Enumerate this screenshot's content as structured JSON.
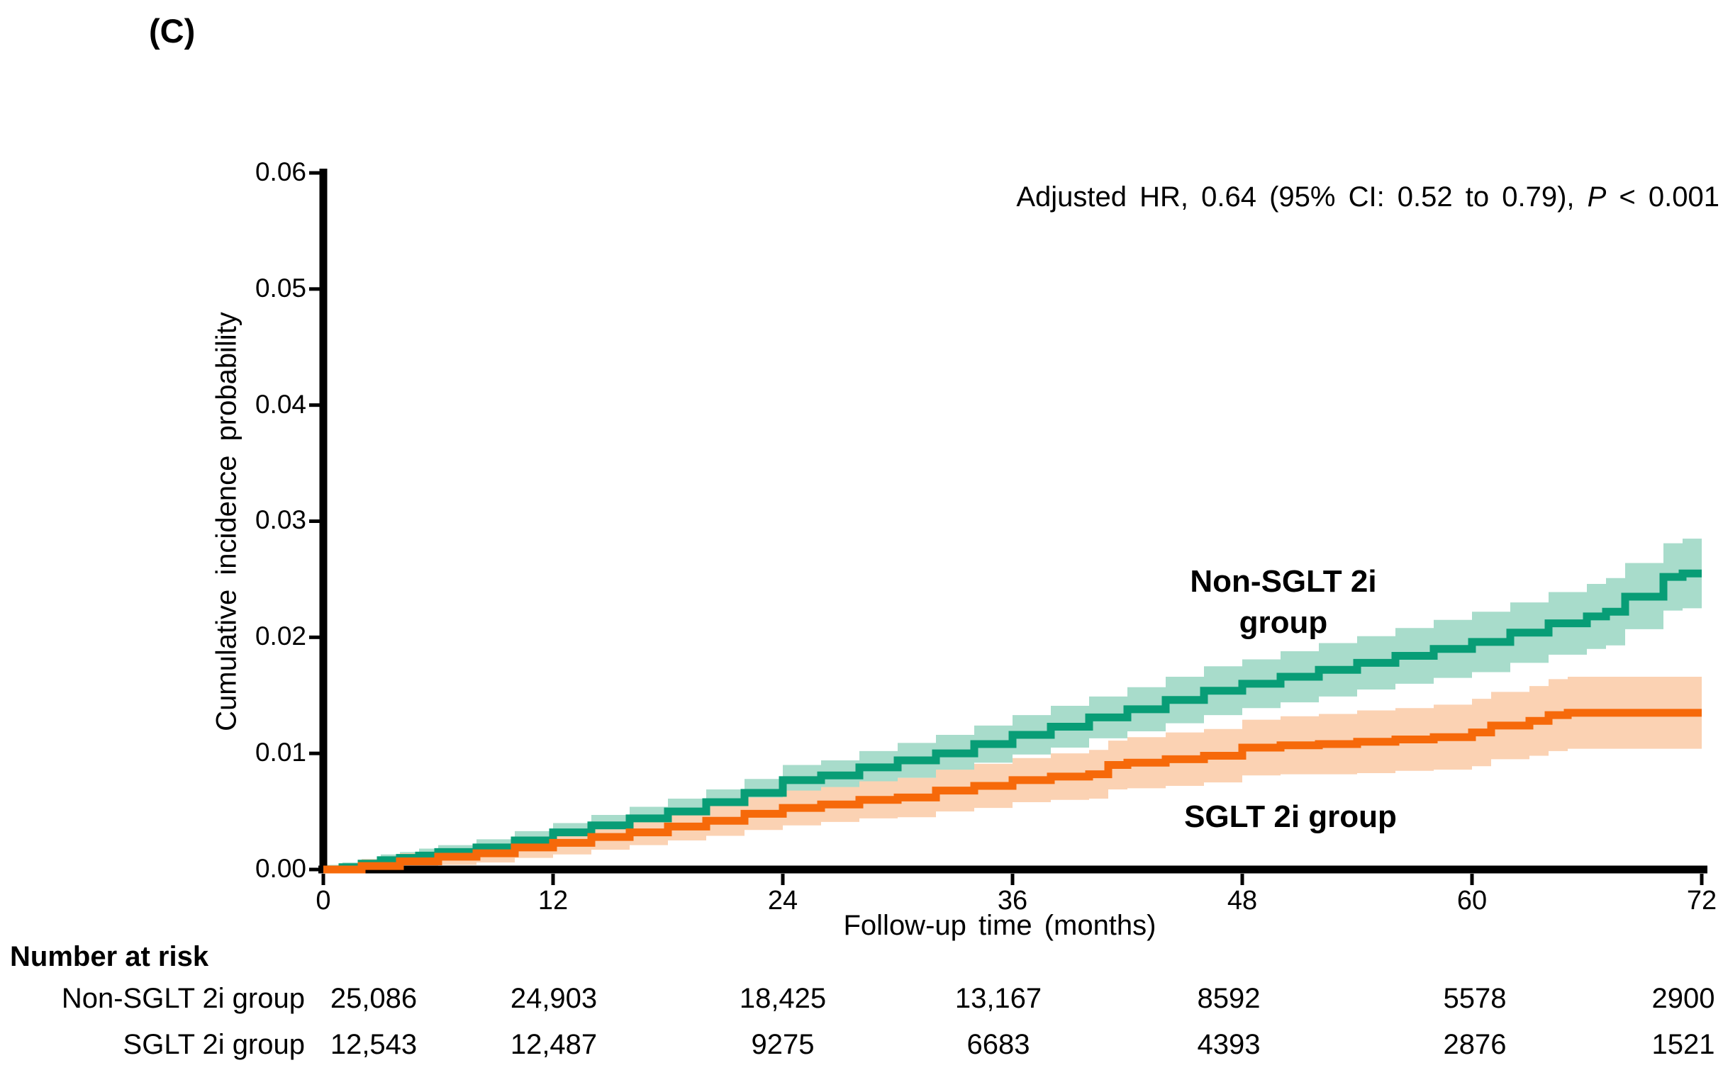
{
  "panel_label": "(C)",
  "chart_data": {
    "type": "line",
    "subtype": "cumulative-incidence-step-curves-with-95ci-bands",
    "annotation": {
      "prefix": "Adjusted HR,  0.64 (95% CI: 0.52 to 0.79), ",
      "italic": "P",
      "suffix": " < 0.001"
    },
    "xlabel": "Follow-up time (months)",
    "ylabel": "Cumulative incidence probability",
    "xlim": [
      0,
      72
    ],
    "ylim": [
      0,
      0.06
    ],
    "grid": false,
    "legend_position": "labels-on-plot",
    "xticks": [
      "0",
      "12",
      "24",
      "36",
      "48",
      "60",
      "72"
    ],
    "xtick_values": [
      0,
      12,
      24,
      36,
      48,
      60,
      72
    ],
    "yticks": [
      "0.06",
      "0.05",
      "0.04",
      "0.03",
      "0.02",
      "0.01",
      "0.00"
    ],
    "ytick_values": [
      0.06,
      0.05,
      0.04,
      0.03,
      0.02,
      0.01,
      0.0
    ],
    "axis_color": "#000000",
    "series": [
      {
        "name": "Non-SGLT 2i group",
        "label_line1": "Non-SGLT 2i",
        "label_line2": "group",
        "color": "#089d76",
        "band_color": "#a8dccb",
        "points": [
          [
            0,
            0
          ],
          [
            1,
            0.0002
          ],
          [
            2,
            0.0005
          ],
          [
            3,
            0.0008
          ],
          [
            4,
            0.001
          ],
          [
            5,
            0.0012
          ],
          [
            6,
            0.0015
          ],
          [
            8,
            0.0019
          ],
          [
            10,
            0.0025
          ],
          [
            12,
            0.0032
          ],
          [
            14,
            0.0038
          ],
          [
            16,
            0.0044
          ],
          [
            18,
            0.005
          ],
          [
            20,
            0.0058
          ],
          [
            22,
            0.0066
          ],
          [
            24,
            0.0077
          ],
          [
            26,
            0.0081
          ],
          [
            28,
            0.0088
          ],
          [
            30,
            0.0094
          ],
          [
            32,
            0.01
          ],
          [
            34,
            0.0108
          ],
          [
            36,
            0.0116
          ],
          [
            38,
            0.0123
          ],
          [
            40,
            0.0131
          ],
          [
            42,
            0.0138
          ],
          [
            44,
            0.0146
          ],
          [
            46,
            0.0154
          ],
          [
            48,
            0.016
          ],
          [
            50,
            0.0166
          ],
          [
            52,
            0.0172
          ],
          [
            54,
            0.0178
          ],
          [
            56,
            0.0184
          ],
          [
            58,
            0.019
          ],
          [
            60,
            0.0196
          ],
          [
            62,
            0.0204
          ],
          [
            64,
            0.0212
          ],
          [
            66,
            0.0218
          ],
          [
            67,
            0.0222
          ],
          [
            68,
            0.0235
          ],
          [
            70,
            0.0252
          ],
          [
            71,
            0.0255
          ],
          [
            72,
            0.0255
          ]
        ],
        "ci": [
          [
            0,
            0,
            0.0004
          ],
          [
            1,
            0,
            0.0006
          ],
          [
            2,
            0.0001,
            0.0009
          ],
          [
            3,
            0.0003,
            0.0013
          ],
          [
            4,
            0.0005,
            0.0015
          ],
          [
            5,
            0.0006,
            0.0018
          ],
          [
            6,
            0.0009,
            0.0021
          ],
          [
            8,
            0.0012,
            0.0026
          ],
          [
            10,
            0.0017,
            0.0033
          ],
          [
            12,
            0.0024,
            0.004
          ],
          [
            14,
            0.0029,
            0.0047
          ],
          [
            16,
            0.0034,
            0.0054
          ],
          [
            18,
            0.004,
            0.0061
          ],
          [
            20,
            0.0047,
            0.0069
          ],
          [
            22,
            0.0054,
            0.0078
          ],
          [
            24,
            0.0064,
            0.009
          ],
          [
            26,
            0.0068,
            0.0094
          ],
          [
            28,
            0.0074,
            0.0102
          ],
          [
            30,
            0.0079,
            0.0109
          ],
          [
            32,
            0.0085,
            0.0116
          ],
          [
            34,
            0.0092,
            0.0124
          ],
          [
            36,
            0.0099,
            0.0133
          ],
          [
            38,
            0.0105,
            0.0141
          ],
          [
            40,
            0.0113,
            0.0149
          ],
          [
            42,
            0.0119,
            0.0157
          ],
          [
            44,
            0.0126,
            0.0166
          ],
          [
            46,
            0.0133,
            0.0175
          ],
          [
            48,
            0.0139,
            0.0181
          ],
          [
            50,
            0.0144,
            0.0188
          ],
          [
            52,
            0.0149,
            0.0195
          ],
          [
            54,
            0.0155,
            0.0201
          ],
          [
            56,
            0.016,
            0.0208
          ],
          [
            58,
            0.0165,
            0.0215
          ],
          [
            60,
            0.017,
            0.0222
          ],
          [
            62,
            0.0178,
            0.023
          ],
          [
            64,
            0.0185,
            0.0239
          ],
          [
            66,
            0.019,
            0.0246
          ],
          [
            67,
            0.0193,
            0.0251
          ],
          [
            68,
            0.0207,
            0.0264
          ],
          [
            70,
            0.0223,
            0.0281
          ],
          [
            71,
            0.0225,
            0.0285
          ],
          [
            72,
            0.0225,
            0.0285
          ]
        ]
      },
      {
        "name": "SGLT 2i group",
        "label_line1": "SGLT 2i group",
        "label_line2": "",
        "color": "#f6690a",
        "band_color": "#fbd2b3",
        "points": [
          [
            0,
            0
          ],
          [
            2,
            0.0003
          ],
          [
            4,
            0.0007
          ],
          [
            6,
            0.0011
          ],
          [
            8,
            0.0014
          ],
          [
            10,
            0.0019
          ],
          [
            12,
            0.0023
          ],
          [
            14,
            0.0028
          ],
          [
            16,
            0.0032
          ],
          [
            18,
            0.0037
          ],
          [
            20,
            0.0042
          ],
          [
            22,
            0.0048
          ],
          [
            24,
            0.0053
          ],
          [
            26,
            0.0056
          ],
          [
            28,
            0.006
          ],
          [
            30,
            0.0062
          ],
          [
            32,
            0.0068
          ],
          [
            34,
            0.0072
          ],
          [
            36,
            0.0077
          ],
          [
            38,
            0.008
          ],
          [
            40,
            0.0082
          ],
          [
            41,
            0.009
          ],
          [
            42,
            0.0092
          ],
          [
            44,
            0.0095
          ],
          [
            46,
            0.0098
          ],
          [
            48,
            0.0105
          ],
          [
            50,
            0.0107
          ],
          [
            52,
            0.0108
          ],
          [
            54,
            0.011
          ],
          [
            56,
            0.0112
          ],
          [
            58,
            0.0114
          ],
          [
            60,
            0.0118
          ],
          [
            61,
            0.0124
          ],
          [
            63,
            0.0128
          ],
          [
            64,
            0.0133
          ],
          [
            65,
            0.0135
          ],
          [
            72,
            0.0135
          ]
        ],
        "ci": [
          [
            0,
            0,
            0.0003
          ],
          [
            2,
            0,
            0.0009
          ],
          [
            4,
            0.0001,
            0.0014
          ],
          [
            6,
            0.0004,
            0.0018
          ],
          [
            8,
            0.0006,
            0.0022
          ],
          [
            10,
            0.001,
            0.0028
          ],
          [
            12,
            0.0013,
            0.0033
          ],
          [
            14,
            0.0017,
            0.0039
          ],
          [
            16,
            0.0021,
            0.0043
          ],
          [
            18,
            0.0025,
            0.0049
          ],
          [
            20,
            0.0029,
            0.0055
          ],
          [
            22,
            0.0034,
            0.0062
          ],
          [
            24,
            0.0038,
            0.0068
          ],
          [
            26,
            0.0041,
            0.0071
          ],
          [
            28,
            0.0044,
            0.0076
          ],
          [
            30,
            0.0045,
            0.0079
          ],
          [
            32,
            0.005,
            0.0086
          ],
          [
            34,
            0.0053,
            0.0091
          ],
          [
            36,
            0.0058,
            0.0096
          ],
          [
            38,
            0.006,
            0.01
          ],
          [
            40,
            0.0061,
            0.0103
          ],
          [
            41,
            0.0069,
            0.0111
          ],
          [
            42,
            0.007,
            0.0114
          ],
          [
            44,
            0.0072,
            0.0118
          ],
          [
            46,
            0.0075,
            0.0121
          ],
          [
            48,
            0.0081,
            0.0129
          ],
          [
            50,
            0.0082,
            0.0132
          ],
          [
            52,
            0.0082,
            0.0134
          ],
          [
            54,
            0.0083,
            0.0137
          ],
          [
            56,
            0.0085,
            0.0139
          ],
          [
            58,
            0.0086,
            0.0142
          ],
          [
            60,
            0.0089,
            0.0147
          ],
          [
            61,
            0.0095,
            0.0153
          ],
          [
            63,
            0.0098,
            0.0158
          ],
          [
            64,
            0.0102,
            0.0164
          ],
          [
            65,
            0.0104,
            0.0166
          ],
          [
            72,
            0.0103,
            0.0167
          ]
        ]
      }
    ]
  },
  "risk_table": {
    "title": "Number at risk",
    "rows": [
      {
        "label": "Non-SGLT 2i group",
        "values": [
          "25,086",
          "24,903",
          "18,425",
          "13,167",
          "8592",
          "5578",
          "2900"
        ]
      },
      {
        "label": "SGLT 2i group",
        "values": [
          "12,543",
          "12,487",
          "9275",
          "6683",
          "4393",
          "2876",
          "1521"
        ]
      }
    ]
  }
}
